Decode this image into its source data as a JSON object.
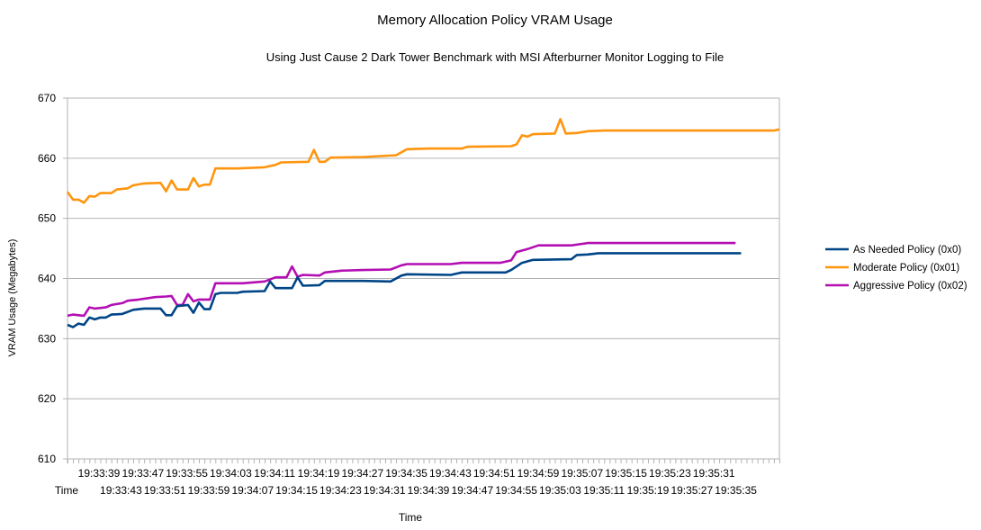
{
  "chart_data": {
    "type": "line",
    "title": "Memory Allocation Policy VRAM Usage",
    "subtitle": "Using Just Cause 2 Dark Tower Benchmark with MSI Afterburner Monitor Logging to File",
    "xlabel": "Time",
    "ylabel": "VRAM Usage (Megabytes)",
    "ylim": [
      610,
      670
    ],
    "yticks": [
      "610",
      "620",
      "630",
      "640",
      "650",
      "660",
      "670"
    ],
    "x_units": "seconds elapsed (1 sample per second)",
    "xlim": [
      0,
      130
    ],
    "first_category_label": "Time",
    "xtick_labels_row1": [
      "19:33:39",
      "19:33:47",
      "19:33:55",
      "19:34:03",
      "19:34:11",
      "19:34:19",
      "19:34:27",
      "19:34:35",
      "19:34:43",
      "19:34:51",
      "19:34:59",
      "19:35:07",
      "19:35:15",
      "19:35:23",
      "19:35:31"
    ],
    "xtick_labels_row2": [
      "19:33:43",
      "19:33:51",
      "19:33:59",
      "19:34:07",
      "19:34:15",
      "19:34:23",
      "19:34:31",
      "19:34:39",
      "19:34:47",
      "19:34:55",
      "19:35:03",
      "19:35:11",
      "19:35:19",
      "19:35:27",
      "19:35:35"
    ],
    "grid": "horizontal",
    "legend_position": "right",
    "series": [
      {
        "name": "As Needed Policy (0x0)",
        "color": "#004586",
        "points": [
          [
            0,
            632.3
          ],
          [
            1,
            631.9
          ],
          [
            2,
            632.5
          ],
          [
            3,
            632.3
          ],
          [
            4,
            633.5
          ],
          [
            5,
            633.2
          ],
          [
            6,
            633.5
          ],
          [
            7,
            633.5
          ],
          [
            8,
            634.0
          ],
          [
            10,
            634.1
          ],
          [
            12,
            634.8
          ],
          [
            14,
            635.0
          ],
          [
            17,
            635.0
          ],
          [
            18,
            633.9
          ],
          [
            19,
            633.9
          ],
          [
            20,
            635.4
          ],
          [
            22,
            635.6
          ],
          [
            23,
            634.3
          ],
          [
            24,
            636.0
          ],
          [
            25,
            634.9
          ],
          [
            26,
            634.9
          ],
          [
            27,
            637.4
          ],
          [
            28,
            637.6
          ],
          [
            31,
            637.6
          ],
          [
            32,
            637.8
          ],
          [
            36,
            637.9
          ],
          [
            37,
            639.5
          ],
          [
            38,
            638.4
          ],
          [
            41,
            638.4
          ],
          [
            42,
            640.2
          ],
          [
            43,
            638.8
          ],
          [
            46,
            638.9
          ],
          [
            47,
            639.6
          ],
          [
            54,
            639.6
          ],
          [
            59,
            639.5
          ],
          [
            61,
            640.5
          ],
          [
            62,
            640.7
          ],
          [
            70,
            640.6
          ],
          [
            72,
            641.0
          ],
          [
            80,
            641.0
          ],
          [
            81,
            641.4
          ],
          [
            83,
            642.6
          ],
          [
            85,
            643.1
          ],
          [
            92,
            643.2
          ],
          [
            93,
            643.9
          ],
          [
            95,
            644.0
          ],
          [
            97,
            644.2
          ],
          [
            123,
            644.2
          ]
        ]
      },
      {
        "name": "Moderate Policy  (0x01)",
        "color": "#ff950e",
        "points": [
          [
            0,
            654.4
          ],
          [
            1,
            653.1
          ],
          [
            2,
            653.1
          ],
          [
            3,
            652.6
          ],
          [
            4,
            653.7
          ],
          [
            5,
            653.6
          ],
          [
            6,
            654.2
          ],
          [
            8,
            654.2
          ],
          [
            9,
            654.8
          ],
          [
            11,
            655.0
          ],
          [
            12,
            655.5
          ],
          [
            14,
            655.8
          ],
          [
            17,
            655.9
          ],
          [
            18,
            654.5
          ],
          [
            19,
            656.3
          ],
          [
            20,
            654.8
          ],
          [
            22,
            654.8
          ],
          [
            23,
            656.7
          ],
          [
            24,
            655.3
          ],
          [
            25,
            655.6
          ],
          [
            26,
            655.6
          ],
          [
            27,
            658.3
          ],
          [
            31,
            658.3
          ],
          [
            36,
            658.5
          ],
          [
            38,
            658.9
          ],
          [
            39,
            659.3
          ],
          [
            44,
            659.4
          ],
          [
            45,
            661.4
          ],
          [
            46,
            659.4
          ],
          [
            47,
            659.4
          ],
          [
            48,
            660.1
          ],
          [
            54,
            660.2
          ],
          [
            60,
            660.5
          ],
          [
            61,
            661.0
          ],
          [
            62,
            661.5
          ],
          [
            66,
            661.6
          ],
          [
            72,
            661.6
          ],
          [
            73,
            661.9
          ],
          [
            81,
            662.0
          ],
          [
            82,
            662.3
          ],
          [
            83,
            663.8
          ],
          [
            84,
            663.6
          ],
          [
            85,
            664.0
          ],
          [
            89,
            664.1
          ],
          [
            90,
            666.5
          ],
          [
            91,
            664.1
          ],
          [
            93,
            664.2
          ],
          [
            95,
            664.5
          ],
          [
            98,
            664.6
          ],
          [
            129,
            664.6
          ],
          [
            130,
            664.8
          ]
        ]
      },
      {
        "name": "Aggressive Policy (0x02)",
        "color": "#b30fb3",
        "points": [
          [
            0,
            633.8
          ],
          [
            1,
            634.0
          ],
          [
            2,
            633.9
          ],
          [
            3,
            633.8
          ],
          [
            4,
            635.2
          ],
          [
            5,
            635.0
          ],
          [
            7,
            635.2
          ],
          [
            8,
            635.6
          ],
          [
            10,
            635.9
          ],
          [
            11,
            636.3
          ],
          [
            13,
            636.5
          ],
          [
            16,
            636.9
          ],
          [
            18,
            637.0
          ],
          [
            19,
            637.1
          ],
          [
            20,
            635.6
          ],
          [
            21,
            635.6
          ],
          [
            22,
            637.4
          ],
          [
            23,
            636.2
          ],
          [
            24,
            636.5
          ],
          [
            26,
            636.5
          ],
          [
            27,
            639.2
          ],
          [
            32,
            639.2
          ],
          [
            36,
            639.5
          ],
          [
            38,
            640.2
          ],
          [
            40,
            640.2
          ],
          [
            41,
            642.0
          ],
          [
            42,
            640.3
          ],
          [
            43,
            640.6
          ],
          [
            46,
            640.5
          ],
          [
            47,
            641.0
          ],
          [
            50,
            641.3
          ],
          [
            54,
            641.4
          ],
          [
            59,
            641.5
          ],
          [
            61,
            642.2
          ],
          [
            62,
            642.4
          ],
          [
            70,
            642.4
          ],
          [
            72,
            642.6
          ],
          [
            79,
            642.6
          ],
          [
            81,
            643.0
          ],
          [
            82,
            644.4
          ],
          [
            84,
            644.9
          ],
          [
            86,
            645.5
          ],
          [
            92,
            645.5
          ],
          [
            95,
            645.9
          ],
          [
            122,
            645.9
          ]
        ]
      }
    ]
  }
}
